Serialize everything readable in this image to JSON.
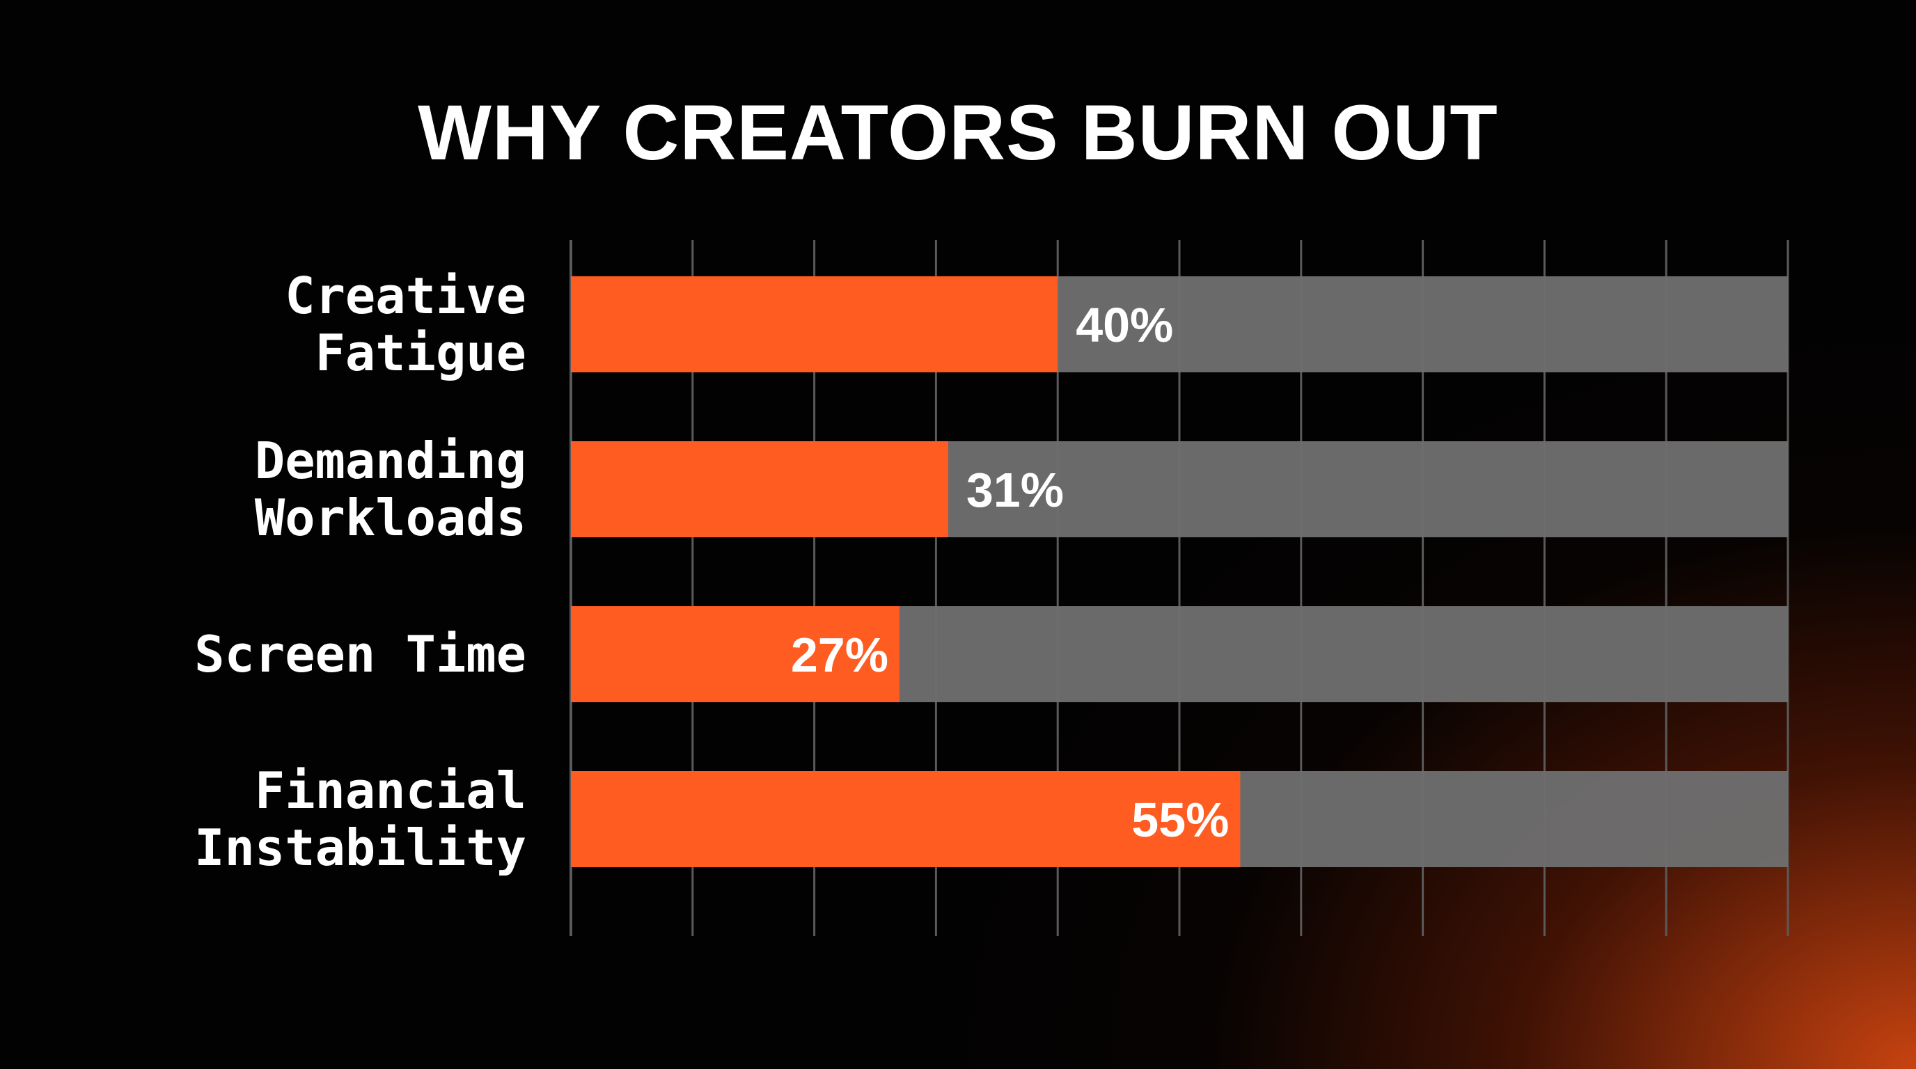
{
  "chart_data": {
    "type": "bar",
    "orientation": "horizontal",
    "title": "WHY CREATORS BURN OUT",
    "xlabel": "",
    "ylabel": "",
    "xlim": [
      0,
      100
    ],
    "grid": true,
    "categories": [
      [
        "Creative",
        "Fatigue"
      ],
      [
        "Demanding",
        "Workloads"
      ],
      [
        "Screen Time"
      ],
      [
        "Financial",
        "Instability"
      ]
    ],
    "values": [
      40,
      31,
      27,
      55
    ],
    "data_labels": [
      "40%",
      "31%",
      "27%",
      "55%"
    ],
    "colors": {
      "bar": "#ff5c22",
      "track": "#6e6e6e",
      "grid": "#5a5a5a",
      "text": "#ffffff"
    }
  }
}
